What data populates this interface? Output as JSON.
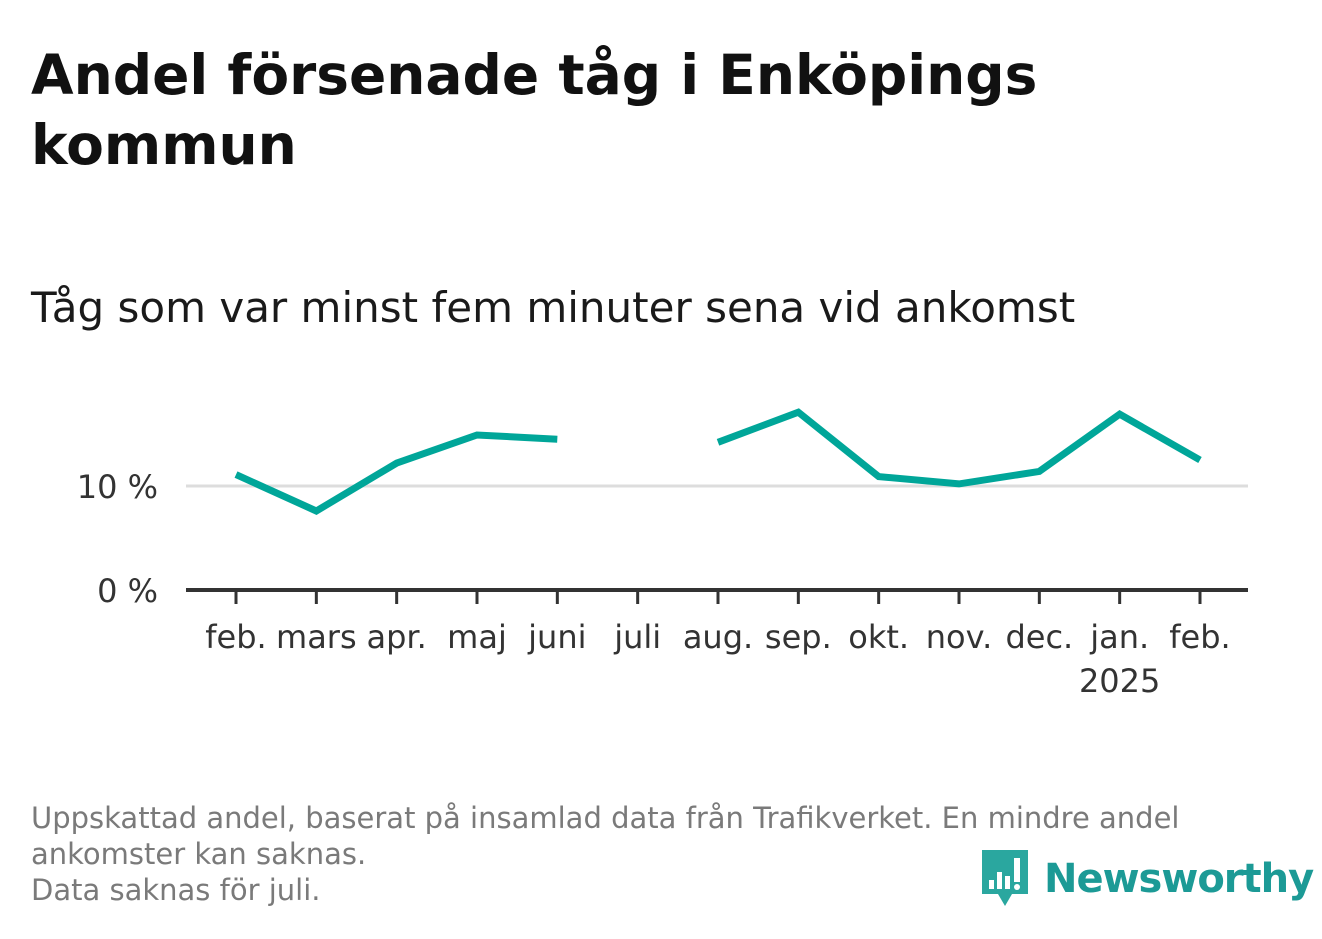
{
  "title": "Andel försenade tåg i Enköpings kommun",
  "subtitle": "Tåg som var minst fem minuter sena vid ankomst",
  "footnote": {
    "line1": "Uppskattad andel, baserat på insamlad data från Trafikverket. En mindre andel",
    "line2": "ankomster kan saknas.",
    "line3": "Data saknas för juli."
  },
  "brand": {
    "name": "Newsworthy",
    "icon": "bar-chart-bubble-icon",
    "color": "#1c9a96"
  },
  "colors": {
    "line": "#00a699",
    "grid": "#dddddd",
    "axis": "#333333"
  },
  "chart_data": {
    "type": "line",
    "categories": [
      "feb.",
      "mars",
      "apr.",
      "maj",
      "juni",
      "juli",
      "aug.",
      "sep.",
      "okt.",
      "nov.",
      "dec.",
      "jan.",
      "feb."
    ],
    "year_label": "2025",
    "year_label_index": 11,
    "series": [
      {
        "values": [
          11.1,
          7.6,
          12.2,
          14.9,
          14.5,
          null,
          14.2,
          17.1,
          10.9,
          10.2,
          11.4,
          16.9,
          12.5
        ]
      }
    ],
    "yticks": [
      {
        "value": 0,
        "label": "0 %"
      },
      {
        "value": 10,
        "label": "10 %"
      }
    ],
    "ylim": [
      0,
      20
    ],
    "grid": true,
    "legend": "none"
  }
}
